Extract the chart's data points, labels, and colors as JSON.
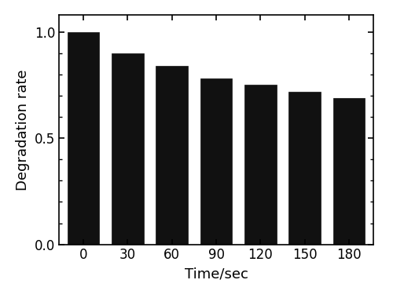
{
  "categories": [
    0,
    30,
    60,
    90,
    120,
    150,
    180
  ],
  "values": [
    1.0,
    0.9,
    0.84,
    0.78,
    0.75,
    0.72,
    0.69
  ],
  "bar_color": "#111111",
  "bar_edge_color": "#111111",
  "xlabel": "Time/sec",
  "ylabel": "Degradation rate",
  "ylim": [
    0.0,
    1.08
  ],
  "yticks": [
    0.0,
    0.5,
    1.0
  ],
  "bar_width": 0.72,
  "xlabel_fontsize": 13,
  "ylabel_fontsize": 13,
  "tick_fontsize": 12,
  "background_color": "#ffffff",
  "spine_color": "#000000"
}
